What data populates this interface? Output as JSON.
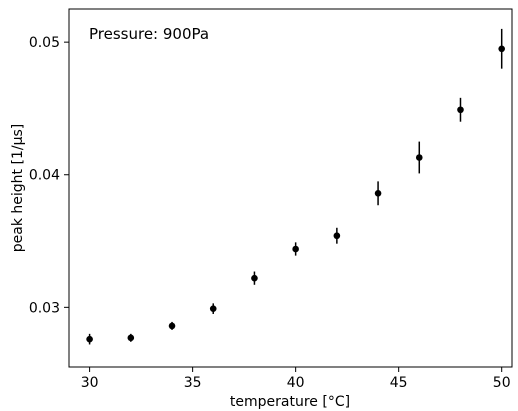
{
  "chart_data": {
    "type": "scatter",
    "title": "",
    "annotation": "Pressure: 900Pa",
    "xlabel": "temperature [°C]",
    "ylabel": "peak height [1/μs]",
    "xlim": [
      29.0,
      50.5
    ],
    "ylim": [
      0.0255,
      0.0525
    ],
    "xticks": [
      30,
      35,
      40,
      45,
      50
    ],
    "xtick_labels": [
      "30",
      "35",
      "40",
      "45",
      "50"
    ],
    "yticks": [
      0.03,
      0.04,
      0.05
    ],
    "ytick_labels": [
      "0.03",
      "0.04",
      "0.05"
    ],
    "grid": false,
    "legend": "none",
    "marker_color": "#000000",
    "points": [
      {
        "x": 30,
        "y": 0.0276,
        "err": 0.0004
      },
      {
        "x": 32,
        "y": 0.0277,
        "err": 0.0003
      },
      {
        "x": 34,
        "y": 0.0286,
        "err": 0.0003
      },
      {
        "x": 36,
        "y": 0.0299,
        "err": 0.0004
      },
      {
        "x": 38,
        "y": 0.0322,
        "err": 0.0005
      },
      {
        "x": 40,
        "y": 0.0344,
        "err": 0.0005
      },
      {
        "x": 42,
        "y": 0.0354,
        "err": 0.0006
      },
      {
        "x": 44,
        "y": 0.0386,
        "err": 0.0009
      },
      {
        "x": 46,
        "y": 0.0413,
        "err": 0.0012
      },
      {
        "x": 48,
        "y": 0.0449,
        "err": 0.0009
      },
      {
        "x": 50,
        "y": 0.0495,
        "err": 0.0015
      }
    ]
  }
}
